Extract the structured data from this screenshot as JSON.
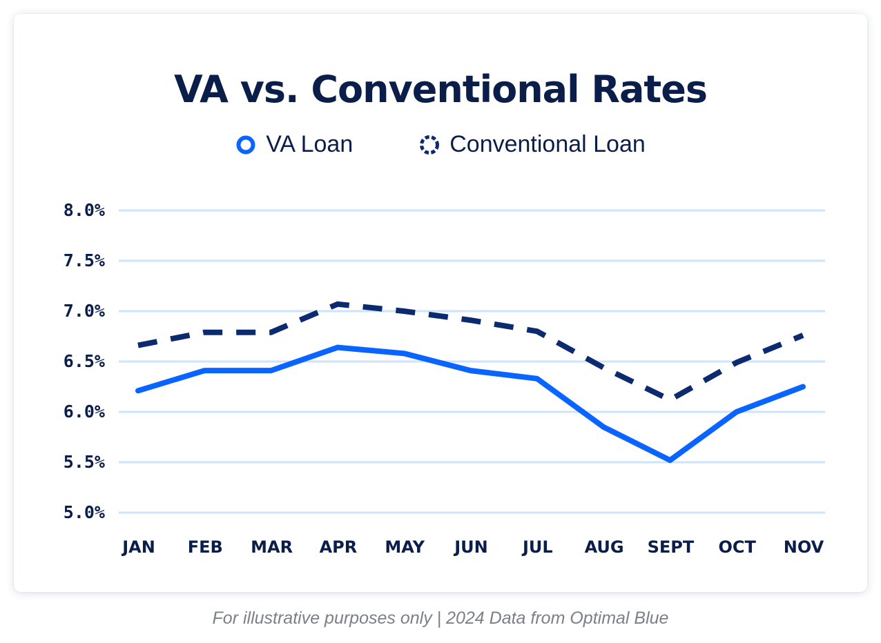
{
  "chart_data": {
    "type": "line",
    "title": "VA vs. Conventional Rates",
    "categories": [
      "JAN",
      "FEB",
      "MAR",
      "APR",
      "MAY",
      "JUN",
      "JUL",
      "AUG",
      "SEPT",
      "OCT",
      "NOV"
    ],
    "series": [
      {
        "name": "VA Loan",
        "color": "#0a64ff",
        "style": "solid",
        "values": [
          6.21,
          6.41,
          6.41,
          6.64,
          6.58,
          6.41,
          6.33,
          5.85,
          5.52,
          6.0,
          6.25
        ]
      },
      {
        "name": "Conventional Loan",
        "color": "#0b2a6f",
        "style": "dashed",
        "values": [
          6.66,
          6.79,
          6.79,
          7.07,
          7.0,
          6.91,
          6.8,
          6.44,
          6.12,
          6.49,
          6.76
        ]
      }
    ],
    "ylim": [
      5.0,
      8.0
    ],
    "yticks": [
      "5.0%",
      "5.5%",
      "6.0%",
      "6.5%",
      "7.0%",
      "7.5%",
      "8.0%"
    ],
    "ytick_values": [
      5.0,
      5.5,
      6.0,
      6.5,
      7.0,
      7.5,
      8.0
    ],
    "xlabel": "",
    "ylabel": "",
    "grid": true,
    "legend": "top-center",
    "gridline_color": "#cfe3fb"
  },
  "footnote": "For illustrative purposes only | 2024 Data from Optimal Blue"
}
